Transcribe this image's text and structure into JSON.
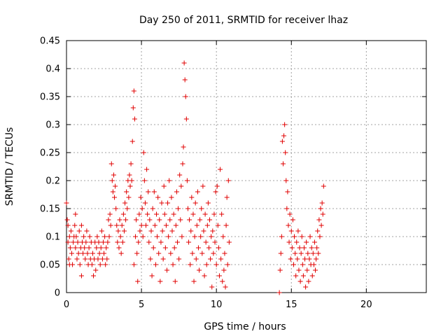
{
  "chart_data": {
    "type": "scatter",
    "title": "Day 250 of 2011, SRMTID for receiver lhaz",
    "xlabel": "GPS time / hours",
    "ylabel": "SRMTID / TECUs",
    "xlim": [
      0,
      24
    ],
    "ylim": [
      0,
      0.45
    ],
    "x_ticks": [
      0,
      5,
      10,
      15,
      20
    ],
    "y_ticks": [
      0,
      0.05,
      0.1,
      0.15,
      0.2,
      0.25,
      0.3,
      0.35,
      0.4,
      0.45
    ],
    "x_tick_labels": [
      "0",
      "5",
      "10",
      "15",
      "20"
    ],
    "y_tick_labels": [
      "0",
      "0.05",
      "0.1",
      "0.15",
      "0.2",
      "0.25",
      "0.3",
      "0.35",
      "0.4",
      "0.45"
    ],
    "grid": true,
    "marker": "+",
    "color": "#e00000",
    "series": [
      {
        "name": "SRMTID",
        "points": [
          [
            0.0,
            0.16
          ],
          [
            0.05,
            0.13
          ],
          [
            0.1,
            0.12
          ],
          [
            0.1,
            0.09
          ],
          [
            0.15,
            0.06
          ],
          [
            0.2,
            0.1
          ],
          [
            0.2,
            0.05
          ],
          [
            0.25,
            0.08
          ],
          [
            0.3,
            0.11
          ],
          [
            0.35,
            0.07
          ],
          [
            0.4,
            0.05
          ],
          [
            0.45,
            0.09
          ],
          [
            0.5,
            0.1
          ],
          [
            0.55,
            0.12
          ],
          [
            0.6,
            0.14
          ],
          [
            0.6,
            0.08
          ],
          [
            0.65,
            0.1
          ],
          [
            0.7,
            0.06
          ],
          [
            0.75,
            0.09
          ],
          [
            0.8,
            0.07
          ],
          [
            0.85,
            0.11
          ],
          [
            0.9,
            0.05
          ],
          [
            0.95,
            0.08
          ],
          [
            1.0,
            0.12
          ],
          [
            1.0,
            0.03
          ],
          [
            1.05,
            0.09
          ],
          [
            1.1,
            0.07
          ],
          [
            1.15,
            0.1
          ],
          [
            1.2,
            0.08
          ],
          [
            1.25,
            0.06
          ],
          [
            1.3,
            0.09
          ],
          [
            1.35,
            0.11
          ],
          [
            1.4,
            0.07
          ],
          [
            1.45,
            0.05
          ],
          [
            1.5,
            0.08
          ],
          [
            1.55,
            0.1
          ],
          [
            1.6,
            0.06
          ],
          [
            1.65,
            0.09
          ],
          [
            1.7,
            0.05
          ],
          [
            1.75,
            0.07
          ],
          [
            1.8,
            0.03
          ],
          [
            1.85,
            0.06
          ],
          [
            1.9,
            0.09
          ],
          [
            1.95,
            0.04
          ],
          [
            2.0,
            0.08
          ],
          [
            2.05,
            0.1
          ],
          [
            2.1,
            0.06
          ],
          [
            2.15,
            0.09
          ],
          [
            2.2,
            0.07
          ],
          [
            2.25,
            0.05
          ],
          [
            2.3,
            0.08
          ],
          [
            2.35,
            0.11
          ],
          [
            2.4,
            0.06
          ],
          [
            2.45,
            0.09
          ],
          [
            2.5,
            0.07
          ],
          [
            2.55,
            0.1
          ],
          [
            2.6,
            0.05
          ],
          [
            2.65,
            0.08
          ],
          [
            2.7,
            0.06
          ],
          [
            2.75,
            0.09
          ],
          [
            2.8,
            0.13
          ],
          [
            2.85,
            0.1
          ],
          [
            2.9,
            0.14
          ],
          [
            2.95,
            0.12
          ],
          [
            3.0,
            0.23
          ],
          [
            3.05,
            0.2
          ],
          [
            3.1,
            0.18
          ],
          [
            3.15,
            0.21
          ],
          [
            3.2,
            0.17
          ],
          [
            3.25,
            0.19
          ],
          [
            3.3,
            0.15
          ],
          [
            3.35,
            0.12
          ],
          [
            3.4,
            0.09
          ],
          [
            3.45,
            0.11
          ],
          [
            3.5,
            0.08
          ],
          [
            3.55,
            0.13
          ],
          [
            3.6,
            0.1
          ],
          [
            3.65,
            0.07
          ],
          [
            3.7,
            0.12
          ],
          [
            3.75,
            0.09
          ],
          [
            3.8,
            0.14
          ],
          [
            3.85,
            0.11
          ],
          [
            3.9,
            0.16
          ],
          [
            3.95,
            0.13
          ],
          [
            4.0,
            0.18
          ],
          [
            4.05,
            0.15
          ],
          [
            4.1,
            0.2
          ],
          [
            4.15,
            0.17
          ],
          [
            4.2,
            0.21
          ],
          [
            4.25,
            0.19
          ],
          [
            4.3,
            0.23
          ],
          [
            4.35,
            0.2
          ],
          [
            4.4,
            0.27
          ],
          [
            4.45,
            0.33
          ],
          [
            4.5,
            0.36
          ],
          [
            4.5,
            0.05
          ],
          [
            4.55,
            0.31
          ],
          [
            4.6,
            0.1
          ],
          [
            4.65,
            0.13
          ],
          [
            4.7,
            0.07
          ],
          [
            4.75,
            0.02
          ],
          [
            4.8,
            0.09
          ],
          [
            4.85,
            0.14
          ],
          [
            4.9,
            0.11
          ],
          [
            4.95,
            0.17
          ],
          [
            5.0,
            0.12
          ],
          [
            5.05,
            0.15
          ],
          [
            5.1,
            0.1
          ],
          [
            5.15,
            0.25
          ],
          [
            5.2,
            0.2
          ],
          [
            5.25,
            0.16
          ],
          [
            5.3,
            0.12
          ],
          [
            5.35,
            0.22
          ],
          [
            5.4,
            0.14
          ],
          [
            5.45,
            0.18
          ],
          [
            5.5,
            0.09
          ],
          [
            5.55,
            0.13
          ],
          [
            5.6,
            0.06
          ],
          [
            5.65,
            0.11
          ],
          [
            5.7,
            0.03
          ],
          [
            5.75,
            0.15
          ],
          [
            5.8,
            0.08
          ],
          [
            5.85,
            0.18
          ],
          [
            5.9,
            0.12
          ],
          [
            5.95,
            0.05
          ],
          [
            6.0,
            0.14
          ],
          [
            6.05,
            0.1
          ],
          [
            6.1,
            0.17
          ],
          [
            6.15,
            0.07
          ],
          [
            6.2,
            0.13
          ],
          [
            6.25,
            0.02
          ],
          [
            6.3,
            0.09
          ],
          [
            6.35,
            0.16
          ],
          [
            6.4,
            0.11
          ],
          [
            6.45,
            0.06
          ],
          [
            6.5,
            0.19
          ],
          [
            6.55,
            0.14
          ],
          [
            6.6,
            0.08
          ],
          [
            6.65,
            0.12
          ],
          [
            6.7,
            0.04
          ],
          [
            6.75,
            0.16
          ],
          [
            6.8,
            0.1
          ],
          [
            6.85,
            0.2
          ],
          [
            6.9,
            0.13
          ],
          [
            6.95,
            0.07
          ],
          [
            7.0,
            0.17
          ],
          [
            7.05,
            0.11
          ],
          [
            7.1,
            0.05
          ],
          [
            7.15,
            0.14
          ],
          [
            7.2,
            0.08
          ],
          [
            7.25,
            0.02
          ],
          [
            7.3,
            0.12
          ],
          [
            7.35,
            0.18
          ],
          [
            7.4,
            0.09
          ],
          [
            7.45,
            0.15
          ],
          [
            7.5,
            0.06
          ],
          [
            7.55,
            0.21
          ],
          [
            7.6,
            0.13
          ],
          [
            7.65,
            0.19
          ],
          [
            7.7,
            0.1
          ],
          [
            7.75,
            0.23
          ],
          [
            7.8,
            0.26
          ],
          [
            7.85,
            0.41
          ],
          [
            7.9,
            0.38
          ],
          [
            7.95,
            0.35
          ],
          [
            8.0,
            0.31
          ],
          [
            8.05,
            0.2
          ],
          [
            8.1,
            0.15
          ],
          [
            8.15,
            0.09
          ],
          [
            8.2,
            0.13
          ],
          [
            8.25,
            0.05
          ],
          [
            8.3,
            0.11
          ],
          [
            8.35,
            0.17
          ],
          [
            8.4,
            0.07
          ],
          [
            8.45,
            0.14
          ],
          [
            8.5,
            0.02
          ],
          [
            8.55,
            0.1
          ],
          [
            8.6,
            0.16
          ],
          [
            8.65,
            0.06
          ],
          [
            8.7,
            0.12
          ],
          [
            8.75,
            0.18
          ],
          [
            8.8,
            0.08
          ],
          [
            8.85,
            0.04
          ],
          [
            8.9,
            0.13
          ],
          [
            8.95,
            0.1
          ],
          [
            9.0,
            0.15
          ],
          [
            9.05,
            0.07
          ],
          [
            9.1,
            0.19
          ],
          [
            9.15,
            0.11
          ],
          [
            9.2,
            0.03
          ],
          [
            9.25,
            0.14
          ],
          [
            9.3,
            0.09
          ],
          [
            9.35,
            0.05
          ],
          [
            9.4,
            0.12
          ],
          [
            9.45,
            0.16
          ],
          [
            9.5,
            0.08
          ],
          [
            9.55,
            0.13
          ],
          [
            9.6,
            0.06
          ],
          [
            9.65,
            0.1
          ],
          [
            9.7,
            0.01
          ],
          [
            9.75,
            0.11
          ],
          [
            9.8,
            0.07
          ],
          [
            9.85,
            0.14
          ],
          [
            9.9,
            0.09
          ],
          [
            9.95,
            0.18
          ],
          [
            10.0,
            0.05
          ],
          [
            10.05,
            0.19
          ],
          [
            10.1,
            0.12
          ],
          [
            10.15,
            0.08
          ],
          [
            10.2,
            0.03
          ],
          [
            10.25,
            0.22
          ],
          [
            10.3,
            0.06
          ],
          [
            10.35,
            0.14
          ],
          [
            10.4,
            0.02
          ],
          [
            10.45,
            0.1
          ],
          [
            10.5,
            0.04
          ],
          [
            10.55,
            0.07
          ],
          [
            10.6,
            0.01
          ],
          [
            10.65,
            0.12
          ],
          [
            10.7,
            0.17
          ],
          [
            10.75,
            0.05
          ],
          [
            10.8,
            0.2
          ],
          [
            10.85,
            0.09
          ],
          [
            14.2,
            0.0
          ],
          [
            14.25,
            0.04
          ],
          [
            14.3,
            0.07
          ],
          [
            14.35,
            0.1
          ],
          [
            14.4,
            0.27
          ],
          [
            14.45,
            0.23
          ],
          [
            14.5,
            0.28
          ],
          [
            14.55,
            0.3
          ],
          [
            14.6,
            0.25
          ],
          [
            14.65,
            0.2
          ],
          [
            14.7,
            0.15
          ],
          [
            14.75,
            0.18
          ],
          [
            14.8,
            0.12
          ],
          [
            14.85,
            0.09
          ],
          [
            14.9,
            0.14
          ],
          [
            14.95,
            0.06
          ],
          [
            15.0,
            0.11
          ],
          [
            15.05,
            0.08
          ],
          [
            15.1,
            0.13
          ],
          [
            15.15,
            0.05
          ],
          [
            15.2,
            0.1
          ],
          [
            15.25,
            0.07
          ],
          [
            15.3,
            0.03
          ],
          [
            15.35,
            0.09
          ],
          [
            15.4,
            0.06
          ],
          [
            15.45,
            0.11
          ],
          [
            15.5,
            0.04
          ],
          [
            15.55,
            0.08
          ],
          [
            15.6,
            0.02
          ],
          [
            15.65,
            0.07
          ],
          [
            15.7,
            0.1
          ],
          [
            15.75,
            0.05
          ],
          [
            15.8,
            0.03
          ],
          [
            15.85,
            0.08
          ],
          [
            15.9,
            0.06
          ],
          [
            15.95,
            0.01
          ],
          [
            16.0,
            0.09
          ],
          [
            16.05,
            0.04
          ],
          [
            16.1,
            0.07
          ],
          [
            16.15,
            0.02
          ],
          [
            16.2,
            0.06
          ],
          [
            16.25,
            0.1
          ],
          [
            16.3,
            0.05
          ],
          [
            16.35,
            0.08
          ],
          [
            16.4,
            0.03
          ],
          [
            16.45,
            0.07
          ],
          [
            16.5,
            0.05
          ],
          [
            16.55,
            0.09
          ],
          [
            16.6,
            0.04
          ],
          [
            16.65,
            0.06
          ],
          [
            16.7,
            0.08
          ],
          [
            16.75,
            0.11
          ],
          [
            16.8,
            0.07
          ],
          [
            16.85,
            0.13
          ],
          [
            16.9,
            0.1
          ],
          [
            16.95,
            0.15
          ],
          [
            17.0,
            0.12
          ],
          [
            17.05,
            0.16
          ],
          [
            17.1,
            0.14
          ],
          [
            17.15,
            0.19
          ]
        ]
      }
    ]
  }
}
